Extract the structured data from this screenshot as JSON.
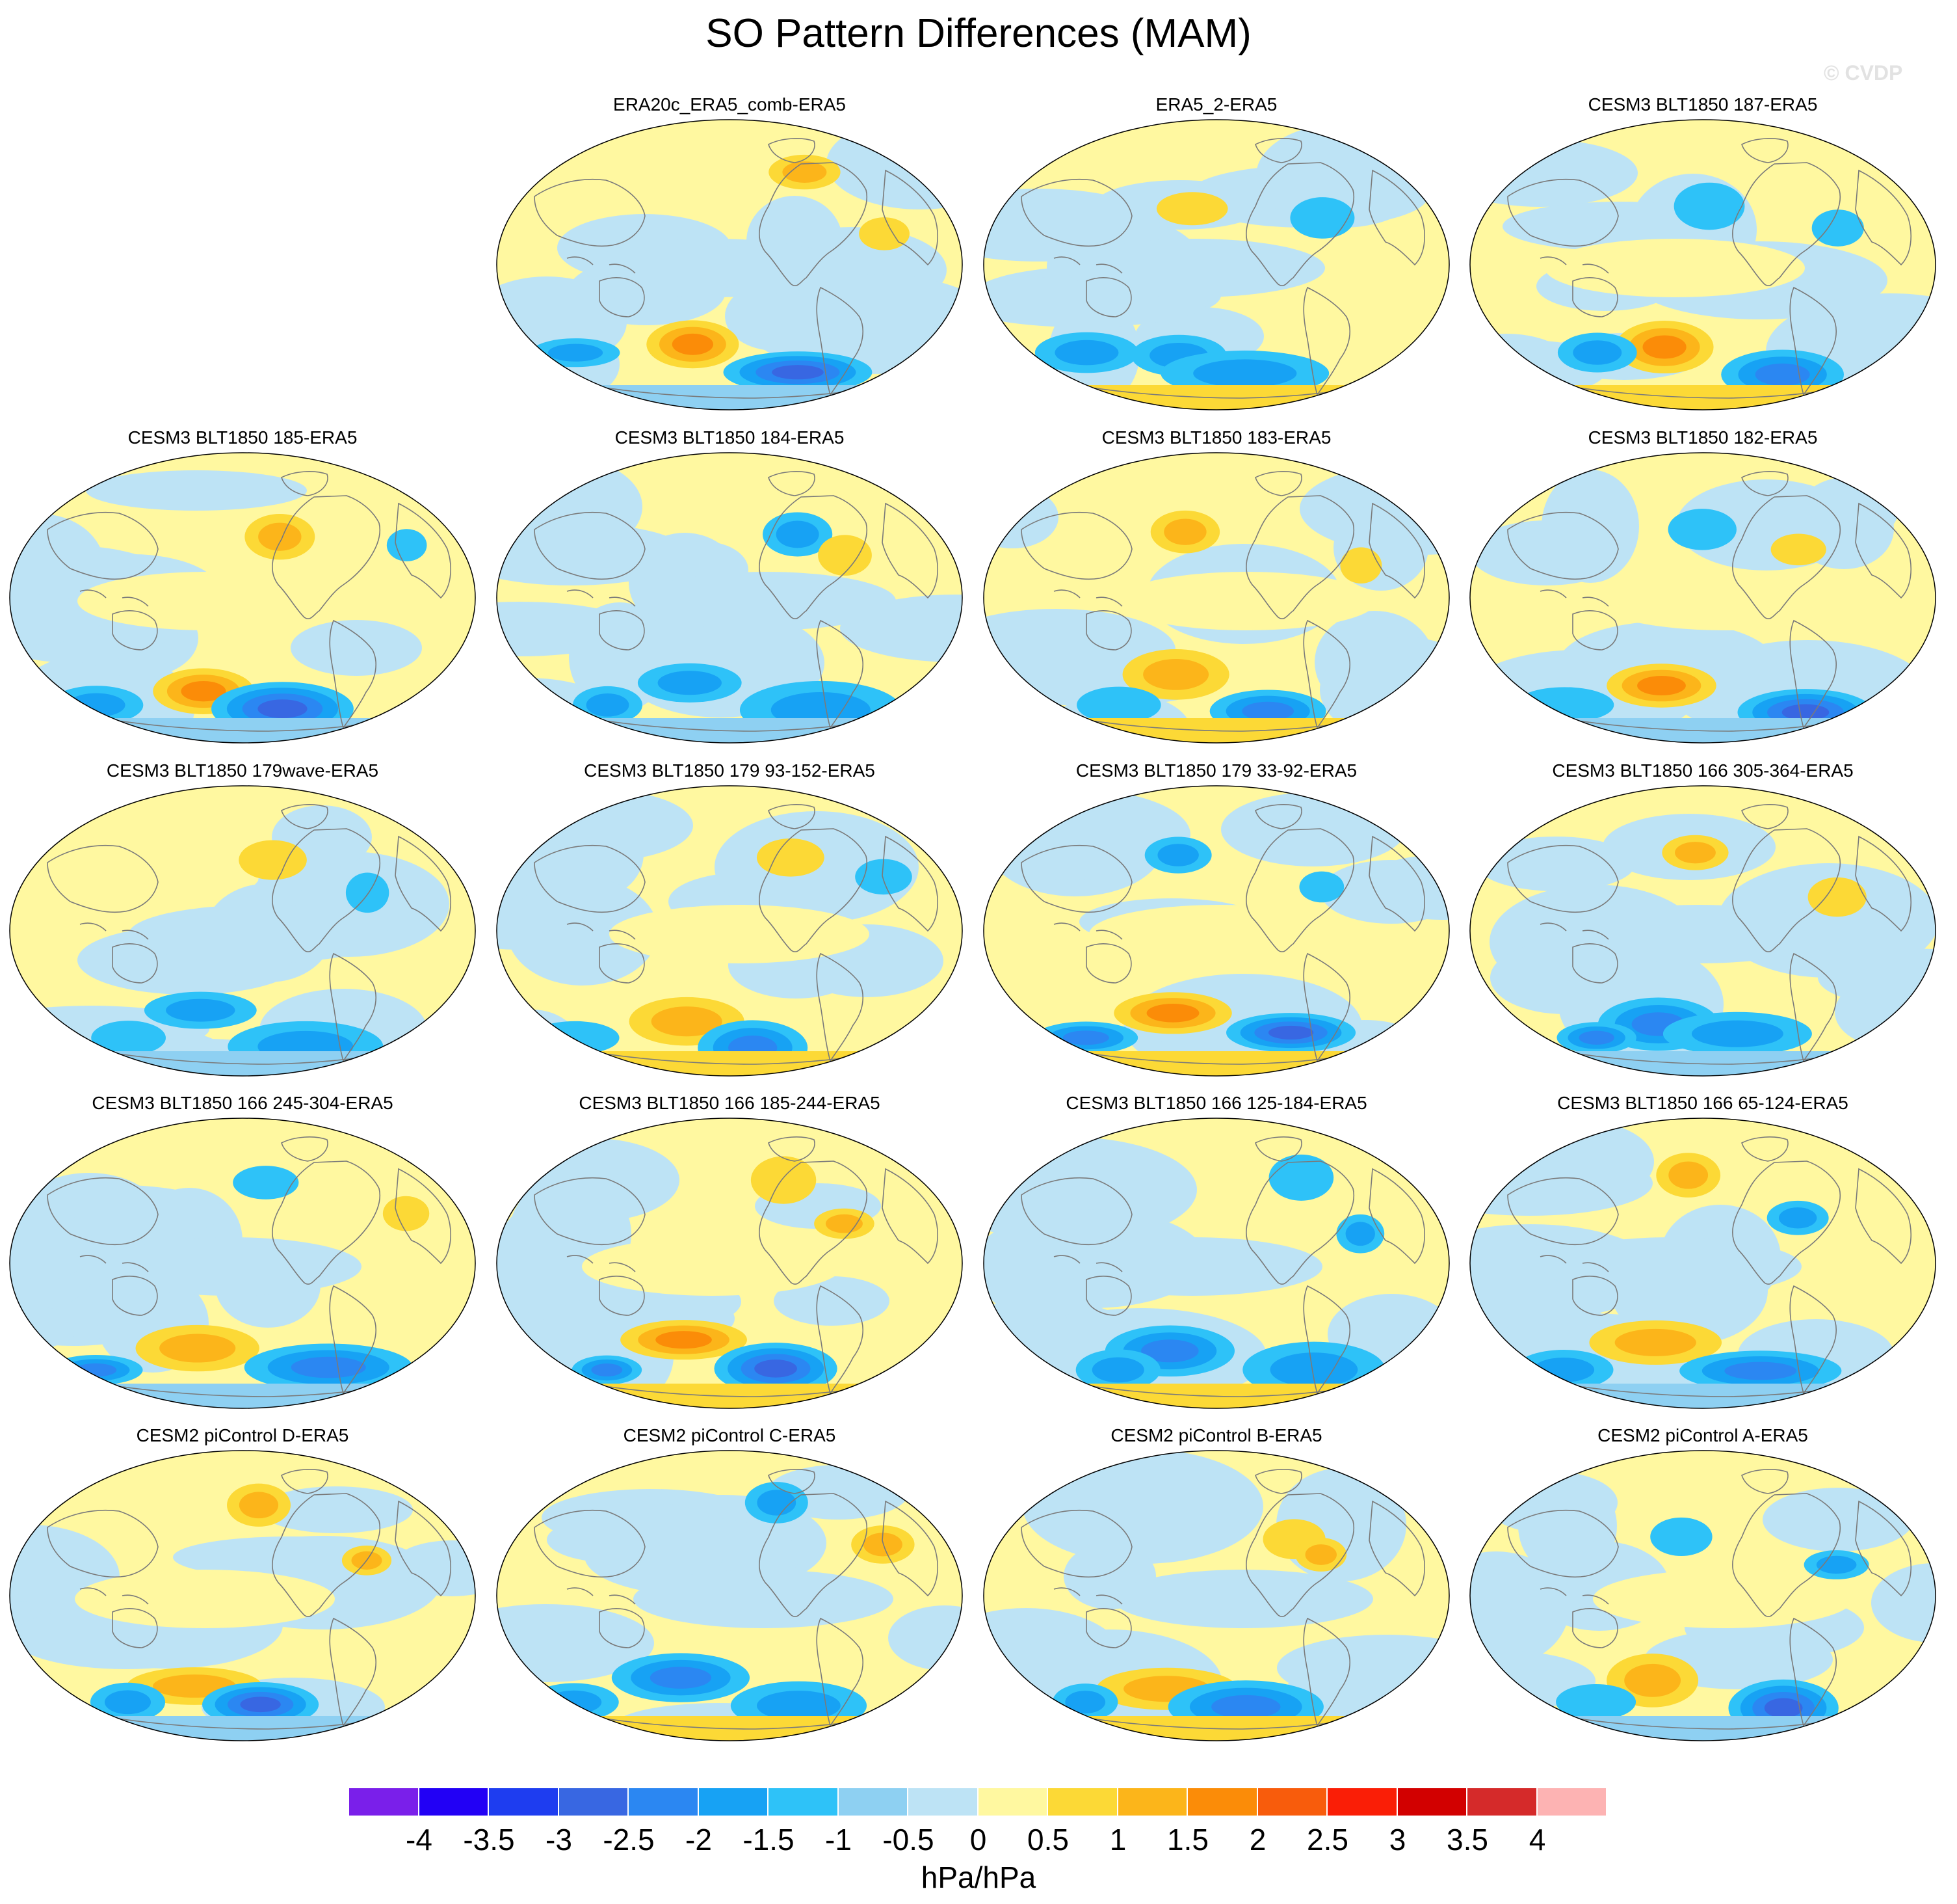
{
  "title": "SO Pattern Differences (MAM)",
  "watermark": "© CVDP",
  "panels": [
    {
      "title": "",
      "blank": true
    },
    {
      "title": "ERA20c_ERA5_comb-ERA5"
    },
    {
      "title": "ERA5_2-ERA5"
    },
    {
      "title": "CESM3 BLT1850 187-ERA5"
    },
    {
      "title": "CESM3 BLT1850 185-ERA5"
    },
    {
      "title": "CESM3 BLT1850 184-ERA5"
    },
    {
      "title": "CESM3 BLT1850 183-ERA5"
    },
    {
      "title": "CESM3 BLT1850 182-ERA5"
    },
    {
      "title": "CESM3 BLT1850 179wave-ERA5"
    },
    {
      "title": "CESM3 BLT1850 179 93-152-ERA5"
    },
    {
      "title": "CESM3 BLT1850 179 33-92-ERA5"
    },
    {
      "title": "CESM3 BLT1850 166 305-364-ERA5"
    },
    {
      "title": "CESM3 BLT1850 166 245-304-ERA5"
    },
    {
      "title": "CESM3 BLT1850 166 185-244-ERA5"
    },
    {
      "title": "CESM3 BLT1850 166 125-184-ERA5"
    },
    {
      "title": "CESM3 BLT1850 166 65-124-ERA5"
    },
    {
      "title": "CESM2 piControl D-ERA5"
    },
    {
      "title": "CESM2 piControl C-ERA5"
    },
    {
      "title": "CESM2 piControl B-ERA5"
    },
    {
      "title": "CESM2 piControl A-ERA5"
    }
  ],
  "colorbar": {
    "labels": [
      "-4",
      "-3.5",
      "-3",
      "-2.5",
      "-2",
      "-1.5",
      "-1",
      "-0.5",
      "0",
      "0.5",
      "1",
      "1.5",
      "2",
      "2.5",
      "3",
      "3.5",
      "4"
    ],
    "colors": [
      "#7a1fea",
      "#2200f5",
      "#1e3df0",
      "#3867e2",
      "#2b87f2",
      "#17a2f4",
      "#2ec2f8",
      "#8ed0f2",
      "#bde3f5",
      "#fff8a0",
      "#fcd936",
      "#fcb51a",
      "#fb8c08",
      "#f85c0c",
      "#fa1e06",
      "#d20000",
      "#d52a2a",
      "#fdb3b3"
    ],
    "units": "hPa/hPa"
  },
  "map_style": {
    "neutral_positive": "#fff8a0",
    "neutral_negative": "#bde3f5",
    "coast_color": "#7a7a7a",
    "land_fill": "#dcdcdc"
  }
}
